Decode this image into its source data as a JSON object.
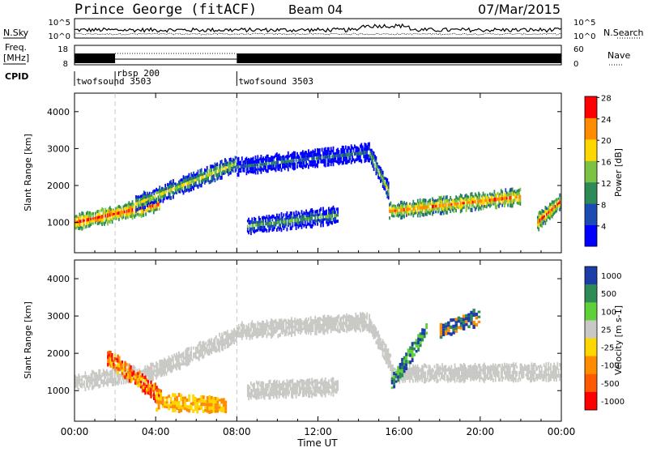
{
  "header": {
    "station": "Prince George (fitACF)",
    "beam": "Beam 04",
    "date": "07/Mar/2015"
  },
  "noise_panel": {
    "left_label": "N.Sky",
    "right_label": "N.Search",
    "left_ticks": [
      "10^5",
      "10^0"
    ],
    "right_ticks": [
      "10^5",
      "10^0"
    ]
  },
  "freq_panel": {
    "left_label_1": "Freq.",
    "left_label_2": "[MHz]",
    "right_label": "Nave",
    "left_ticks": [
      "18",
      "8"
    ],
    "right_ticks": [
      "60",
      "0"
    ]
  },
  "cpid": {
    "label": "CPID",
    "segments": [
      {
        "name": "twofsound 3503",
        "start_hour": 0.0
      },
      {
        "name": "rbsp 200",
        "start_hour": 2.0
      },
      {
        "name": "twofsound 3503",
        "start_hour": 8.0
      }
    ]
  },
  "chart_data": [
    {
      "type": "heatmap",
      "title": "",
      "ylabel": "Slant Range [km]",
      "xlabel": "",
      "xlim": [
        0,
        24
      ],
      "ylim": [
        180,
        4500
      ],
      "yticks": [
        1000,
        2000,
        3000,
        4000
      ],
      "colorbar": {
        "label": "Power [dB]",
        "ticks": [
          "4",
          "8",
          "12",
          "16",
          "20",
          "24",
          "28"
        ],
        "colors": [
          "#0000ff",
          "#1c4bb4",
          "#2e8b57",
          "#7cc243",
          "#ffd700",
          "#ff8c00",
          "#ff0000"
        ]
      },
      "features": [
        {
          "name": "near-range band",
          "start_hour": 0.0,
          "end_hour": 4.2,
          "range_km": [
            1000,
            1500
          ],
          "power_db": 26
        },
        {
          "name": "rising band",
          "start_hour": 3.0,
          "end_hour": 8.0,
          "range_km": [
            1500,
            2600
          ],
          "power_db": 18
        },
        {
          "name": "far band",
          "start_hour": 8.0,
          "end_hour": 14.5,
          "range_km": [
            2500,
            2900
          ],
          "power_db": 10
        },
        {
          "name": "descending band",
          "start_hour": 14.5,
          "end_hour": 15.5,
          "range_km": [
            2900,
            1800
          ],
          "power_db": 16
        },
        {
          "name": "evening band",
          "start_hour": 15.5,
          "end_hour": 22.0,
          "range_km": [
            1300,
            1700
          ],
          "power_db": 24
        },
        {
          "name": "mid band",
          "start_hour": 8.5,
          "end_hour": 13.0,
          "range_km": [
            900,
            1200
          ],
          "power_db": 14
        },
        {
          "name": "late band",
          "start_hour": 22.8,
          "end_hour": 24.0,
          "range_km": [
            1000,
            1600
          ],
          "power_db": 24
        }
      ]
    },
    {
      "type": "heatmap",
      "title": "",
      "ylabel": "Slant Range [km]",
      "xlabel": "Time UT",
      "xlim": [
        0,
        24
      ],
      "ylim": [
        180,
        4500
      ],
      "yticks": [
        1000,
        2000,
        3000,
        4000
      ],
      "xticks": [
        "00:00",
        "04:00",
        "08:00",
        "12:00",
        "16:00",
        "20:00",
        "00:00"
      ],
      "colorbar": {
        "label": "Velocity [m s-1]",
        "ticks": [
          "1000",
          "500",
          "100",
          "25",
          "-25",
          "-100",
          "-500",
          "-1000"
        ],
        "colors": [
          "#1c3ca8",
          "#2e8b57",
          "#5fcf3a",
          "#c8c8c4",
          "#ffd700",
          "#ff8c00",
          "#ff5a00",
          "#ff0000"
        ]
      },
      "features": [
        {
          "name": "ground scatter band",
          "start_hour": 0.0,
          "end_hour": 24.0,
          "velocity": 0
        },
        {
          "name": "negative velocity patch",
          "start_hour": 1.5,
          "end_hour": 4.5,
          "range_km": [
            600,
            2200
          ],
          "velocity_ms": -600
        },
        {
          "name": "positive velocity patch",
          "start_hour": 15.5,
          "end_hour": 17.5,
          "range_km": [
            1000,
            2800
          ],
          "velocity_ms": 300
        }
      ]
    }
  ]
}
